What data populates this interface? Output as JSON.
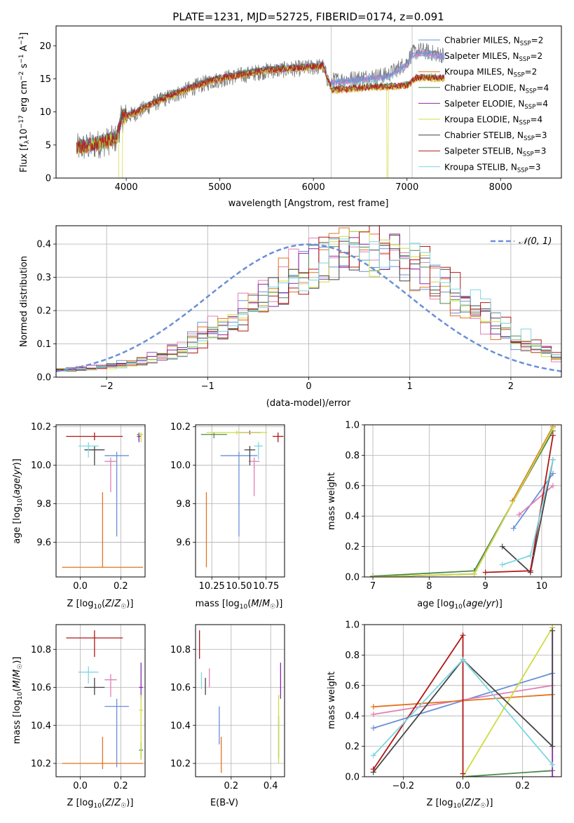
{
  "figure": {
    "title": "PLATE=1231, MJD=52725, FIBERID=0174, z=0.091"
  },
  "colors": {
    "chabrier_miles": "#6a8fd8",
    "salpeter_miles": "#e27fb5",
    "kroupa_miles": "#e2741f",
    "chabrier_elodie": "#4e8a4e",
    "salpeter_elodie": "#8a2aa8",
    "kroupa_elodie": "#cfdc3e",
    "chabrier_stelib": "#454545",
    "salpeter_stelib": "#b01818",
    "kroupa_stelib": "#7ed6e0"
  },
  "chart_data": [
    {
      "id": "spectrum",
      "type": "line",
      "xlabel": "wavelength [Angstrom, rest frame]",
      "ylabel": "Flux [f_λ10^-17 erg cm^-2 s^-1 A^-1]",
      "xlim": [
        3250,
        8650
      ],
      "ylim": [
        0,
        23
      ],
      "xticks": [
        4000,
        5000,
        6000,
        7000,
        8000
      ],
      "yticks": [
        0,
        5,
        10,
        15,
        20
      ],
      "masked_lines": [
        6190,
        7055
      ],
      "spectrum_range": [
        3470,
        7400
      ],
      "legend_position": "top-right",
      "legend": [
        {
          "label": "Chabrier MILES, N",
          "sub": "SSP",
          "suffix": "=2",
          "color": "#6a8fd8"
        },
        {
          "label": "Salpeter MILES, N",
          "sub": "SSP",
          "suffix": "=2",
          "color": "#e27fb5"
        },
        {
          "label": "Kroupa MILES, N",
          "sub": "SSP",
          "suffix": "=2",
          "color": "#e2741f"
        },
        {
          "label": "Chabrier ELODIE, N",
          "sub": "SSP",
          "suffix": "=4",
          "color": "#4e8a4e"
        },
        {
          "label": "Salpeter ELODIE, N",
          "sub": "SSP",
          "suffix": "=4",
          "color": "#8a2aa8"
        },
        {
          "label": "Kroupa ELODIE, N",
          "sub": "SSP",
          "suffix": "=4",
          "color": "#cfdc3e"
        },
        {
          "label": "Chabrier STELIB, N",
          "sub": "SSP",
          "suffix": "=3",
          "color": "#454545"
        },
        {
          "label": "Salpeter STELIB, N",
          "sub": "SSP",
          "suffix": "=3",
          "color": "#b01818"
        },
        {
          "label": "Kroupa STELIB, N",
          "sub": "SSP",
          "suffix": "=3",
          "color": "#7ed6e0"
        }
      ],
      "model_continuum": {
        "x": [
          3470,
          3600,
          3750,
          3900,
          3950,
          4100,
          4300,
          4500,
          4700,
          4900,
          5100,
          5300,
          5500,
          5700,
          5900,
          6100,
          6200,
          6400,
          6600,
          6800,
          6900,
          7000,
          7100,
          7200,
          7300,
          7400
        ],
        "y": [
          4.5,
          4.8,
          5.3,
          6.0,
          9.0,
          9.8,
          11.3,
          12.5,
          13.6,
          14.6,
          15.2,
          15.7,
          16.2,
          16.4,
          16.6,
          16.9,
          13.2,
          13.4,
          13.6,
          13.7,
          13.8,
          13.9,
          15.0,
          15.1,
          15.0,
          15.0
        ]
      },
      "data_continuum": {
        "x": [
          6190,
          6400,
          6600,
          6800,
          7000,
          7050,
          7150,
          7300,
          7400
        ],
        "y": [
          14.7,
          15.0,
          15.3,
          15.6,
          17.5,
          18.8,
          19.3,
          18.8,
          18.6
        ]
      }
    },
    {
      "id": "residuals",
      "type": "histogram",
      "xlabel": "(data-model)/error",
      "ylabel": "Normed distribution",
      "xlim": [
        -2.5,
        2.5
      ],
      "ylim": [
        0,
        0.455
      ],
      "xticks": [
        -2,
        -1,
        0,
        1,
        2
      ],
      "yticks": [
        0.0,
        0.1,
        0.2,
        0.3,
        0.4
      ],
      "bin_width": 0.1,
      "gaussian_label": "N(0,1)",
      "gaussian_color": "#6a8fd8",
      "legend_position": "top-right",
      "histogram_peak_center": 0.5,
      "histogram_peak_height": 0.37,
      "histogram_width": 0.95
    },
    {
      "id": "age-vs-metallicity",
      "type": "errorbar",
      "xlabel": "Z [log10(Z/Z☉)]",
      "ylabel": "age [log10(age/yr)]",
      "xlim": [
        -0.12,
        0.32
      ],
      "ylim": [
        9.42,
        10.21
      ],
      "xticks": [
        0.0,
        0.2
      ],
      "yticks": [
        9.6,
        9.8,
        10.0,
        10.2
      ],
      "points": [
        {
          "model": "chabrier_miles",
          "x": 0.18,
          "y": 10.05,
          "xerr": 0.06,
          "yerr": [
            0.42,
            0.02
          ]
        },
        {
          "model": "salpeter_miles",
          "x": 0.15,
          "y": 10.02,
          "xerr": 0.03,
          "yerr": [
            0.16,
            0.02
          ]
        },
        {
          "model": "kroupa_miles",
          "x": 0.11,
          "y": 9.47,
          "xerr": 0.2,
          "yerr": [
            0.0,
            0.39
          ]
        },
        {
          "model": "chabrier_elodie",
          "x": 0.29,
          "y": 10.16,
          "xerr": 0.01,
          "yerr": [
            0.03,
            0.01
          ]
        },
        {
          "model": "salpeter_elodie",
          "x": 0.29,
          "y": 10.15,
          "xerr": 0.01,
          "yerr": [
            0.03,
            0.01
          ]
        },
        {
          "model": "kroupa_elodie",
          "x": 0.3,
          "y": 10.16,
          "xerr": 0.01,
          "yerr": [
            0.04,
            0.01
          ]
        },
        {
          "model": "chabrier_stelib",
          "x": 0.07,
          "y": 10.08,
          "xerr": 0.05,
          "yerr": [
            0.08,
            0.02
          ]
        },
        {
          "model": "salpeter_stelib",
          "x": 0.07,
          "y": 10.15,
          "xerr": 0.14,
          "yerr": [
            0.02,
            0.02
          ]
        },
        {
          "model": "kroupa_stelib",
          "x": 0.04,
          "y": 10.1,
          "xerr": 0.05,
          "yerr": [
            0.06,
            0.02
          ]
        }
      ]
    },
    {
      "id": "age-vs-mass",
      "type": "errorbar",
      "xlabel": "mass [log10(M/M☉)]",
      "ylabel": "",
      "xlim": [
        10.1,
        10.92
      ],
      "ylim": [
        9.42,
        10.21
      ],
      "xticks": [
        10.25,
        10.5,
        10.75
      ],
      "yticks": [
        9.6,
        9.8,
        10.0,
        10.2
      ],
      "points": [
        {
          "model": "chabrier_miles",
          "x": 10.5,
          "y": 10.05,
          "xerr": 0.17,
          "yerr": [
            0.42,
            0.02
          ]
        },
        {
          "model": "salpeter_miles",
          "x": 10.64,
          "y": 10.02,
          "xerr": 0.05,
          "yerr": [
            0.18,
            0.02
          ]
        },
        {
          "model": "kroupa_miles",
          "x": 10.2,
          "y": 9.47,
          "xerr": 0.0,
          "yerr": [
            0.0,
            0.39
          ]
        },
        {
          "model": "chabrier_elodie",
          "x": 10.27,
          "y": 10.16,
          "xerr": 0.12,
          "yerr": [
            0.02,
            0.01
          ]
        },
        {
          "model": "salpeter_elodie",
          "x": 10.6,
          "y": 10.17,
          "xerr": 0.1,
          "yerr": [
            0.01,
            0.01
          ]
        },
        {
          "model": "kroupa_elodie",
          "x": 10.48,
          "y": 10.17,
          "xerr": 0.28,
          "yerr": [
            0.01,
            0.01
          ]
        },
        {
          "model": "chabrier_stelib",
          "x": 10.6,
          "y": 10.08,
          "xerr": 0.05,
          "yerr": [
            0.08,
            0.02
          ]
        },
        {
          "model": "salpeter_stelib",
          "x": 10.86,
          "y": 10.15,
          "xerr": 0.05,
          "yerr": [
            0.03,
            0.02
          ]
        },
        {
          "model": "kroupa_stelib",
          "x": 10.68,
          "y": 10.1,
          "xerr": 0.04,
          "yerr": [
            0.07,
            0.02
          ]
        }
      ]
    },
    {
      "id": "mass-weight-vs-age",
      "type": "line",
      "xlabel": "age [log10(age/yr)]",
      "ylabel": "mass weight",
      "xlim": [
        6.85,
        10.35
      ],
      "ylim": [
        0.0,
        1.0
      ],
      "xticks": [
        7,
        8,
        9,
        10
      ],
      "yticks": [
        0.0,
        0.2,
        0.4,
        0.6,
        0.8,
        1.0
      ],
      "series": [
        {
          "model": "chabrier_miles",
          "x": [
            9.5,
            10.2
          ],
          "y": [
            0.32,
            0.68
          ]
        },
        {
          "model": "salpeter_miles",
          "x": [
            9.6,
            10.2
          ],
          "y": [
            0.41,
            0.6
          ]
        },
        {
          "model": "kroupa_miles",
          "x": [
            9.48,
            10.2
          ],
          "y": [
            0.5,
            0.99
          ]
        },
        {
          "model": "chabrier_elodie",
          "x": [
            7.0,
            8.8,
            10.2
          ],
          "y": [
            0.005,
            0.04,
            0.96
          ]
        },
        {
          "model": "salpeter_elodie",
          "x": [
            7.0,
            8.8,
            10.2
          ],
          "y": [
            0.0,
            0.02,
            0.98
          ]
        },
        {
          "model": "kroupa_elodie",
          "x": [
            7.0,
            8.8,
            10.2
          ],
          "y": [
            0.0,
            0.02,
            0.98
          ]
        },
        {
          "model": "chabrier_stelib",
          "x": [
            9.3,
            9.8,
            10.2
          ],
          "y": [
            0.2,
            0.03,
            0.77
          ]
        },
        {
          "model": "salpeter_stelib",
          "x": [
            9.0,
            9.8,
            10.2
          ],
          "y": [
            0.03,
            0.04,
            0.93
          ]
        },
        {
          "model": "kroupa_stelib",
          "x": [
            9.3,
            9.8,
            10.2
          ],
          "y": [
            0.08,
            0.14,
            0.77
          ]
        }
      ]
    },
    {
      "id": "mass-vs-metallicity",
      "type": "errorbar",
      "xlabel": "Z [log10(Z/Z☉)]",
      "ylabel": "mass [log10(M/M☉)]",
      "xlim": [
        -0.12,
        0.32
      ],
      "ylim": [
        10.13,
        10.93
      ],
      "xticks": [
        0.0,
        0.2
      ],
      "yticks": [
        10.2,
        10.4,
        10.6,
        10.8
      ],
      "points": [
        {
          "model": "chabrier_miles",
          "x": 0.18,
          "y": 10.5,
          "xerr": 0.06,
          "yerr": [
            0.32,
            0.04
          ]
        },
        {
          "model": "salpeter_miles",
          "x": 0.15,
          "y": 10.64,
          "xerr": 0.03,
          "yerr": [
            0.09,
            0.03
          ]
        },
        {
          "model": "kroupa_miles",
          "x": 0.11,
          "y": 10.2,
          "xerr": 0.2,
          "yerr": [
            0.03,
            0.14
          ]
        },
        {
          "model": "chabrier_elodie",
          "x": 0.3,
          "y": 10.27,
          "xerr": 0.01,
          "yerr": [
            0.05,
            0.04
          ]
        },
        {
          "model": "salpeter_elodie",
          "x": 0.3,
          "y": 10.6,
          "xerr": 0.01,
          "yerr": [
            0.06,
            0.13
          ]
        },
        {
          "model": "kroupa_elodie",
          "x": 0.3,
          "y": 10.48,
          "xerr": 0.01,
          "yerr": [
            0.26,
            0.08
          ]
        },
        {
          "model": "chabrier_stelib",
          "x": 0.07,
          "y": 10.6,
          "xerr": 0.05,
          "yerr": [
            0.04,
            0.05
          ]
        },
        {
          "model": "salpeter_stelib",
          "x": 0.07,
          "y": 10.86,
          "xerr": 0.14,
          "yerr": [
            0.1,
            0.04
          ]
        },
        {
          "model": "kroupa_stelib",
          "x": 0.04,
          "y": 10.68,
          "xerr": 0.05,
          "yerr": [
            0.06,
            0.03
          ]
        }
      ]
    },
    {
      "id": "mass-vs-ebv",
      "type": "errorbar",
      "xlabel": "E(B-V)",
      "ylabel": "",
      "xlim": [
        0.02,
        0.47
      ],
      "ylim": [
        10.13,
        10.93
      ],
      "xticks": [
        0.2,
        0.4
      ],
      "yticks": [
        10.2,
        10.4,
        10.6,
        10.8
      ],
      "points": [
        {
          "model": "chabrier_miles",
          "x": 0.14,
          "y": 10.4,
          "xerr": 0.0,
          "yerr": [
            0.1,
            0.1
          ]
        },
        {
          "model": "salpeter_miles",
          "x": 0.09,
          "y": 10.6,
          "xerr": 0.0,
          "yerr": [
            0.0,
            0.1
          ]
        },
        {
          "model": "kroupa_miles",
          "x": 0.15,
          "y": 10.2,
          "xerr": 0.0,
          "yerr": [
            0.05,
            0.14
          ]
        },
        {
          "model": "chabrier_elodie",
          "x": 0.44,
          "y": 10.35,
          "xerr": 0.0,
          "yerr": [
            0.12,
            0.1
          ]
        },
        {
          "model": "salpeter_elodie",
          "x": 0.45,
          "y": 10.6,
          "xerr": 0.0,
          "yerr": [
            0.06,
            0.13
          ]
        },
        {
          "model": "kroupa_elodie",
          "x": 0.44,
          "y": 10.4,
          "xerr": 0.0,
          "yerr": [
            0.2,
            0.16
          ]
        },
        {
          "model": "chabrier_stelib",
          "x": 0.07,
          "y": 10.6,
          "xerr": 0.0,
          "yerr": [
            0.04,
            0.05
          ]
        },
        {
          "model": "salpeter_stelib",
          "x": 0.04,
          "y": 10.83,
          "xerr": 0.0,
          "yerr": [
            0.08,
            0.07
          ]
        },
        {
          "model": "kroupa_stelib",
          "x": 0.05,
          "y": 10.63,
          "xerr": 0.0,
          "yerr": [
            0.04,
            0.05
          ]
        }
      ]
    },
    {
      "id": "mass-weight-vs-metallicity",
      "type": "line",
      "xlabel": "Z [log10(Z/Z☉)]",
      "ylabel": "mass weight",
      "xlim": [
        -0.33,
        0.33
      ],
      "ylim": [
        0.0,
        1.0
      ],
      "xticks": [
        -0.2,
        0.0,
        0.2
      ],
      "yticks": [
        0.0,
        0.2,
        0.4,
        0.6,
        0.8,
        1.0
      ],
      "series": [
        {
          "model": "chabrier_miles",
          "x": [
            -0.3,
            0.3
          ],
          "y": [
            0.32,
            0.68
          ]
        },
        {
          "model": "salpeter_miles",
          "x": [
            -0.3,
            0.3
          ],
          "y": [
            0.41,
            0.6
          ]
        },
        {
          "model": "kroupa_miles",
          "x": [
            -0.3,
            0.3
          ],
          "y": [
            0.46,
            0.54
          ]
        },
        {
          "model": "chabrier_elodie",
          "x": [
            0.0,
            0.3
          ],
          "y": [
            0.0,
            0.04
          ]
        },
        {
          "model": "salpeter_elodie",
          "x": [
            0.3,
            0.3
          ],
          "y": [
            0.0,
            0.98
          ]
        },
        {
          "model": "kroupa_elodie",
          "x": [
            0.0,
            0.3
          ],
          "y": [
            0.0,
            0.98
          ]
        },
        {
          "model": "chabrier_stelib",
          "x": [
            -0.3,
            0.0,
            0.3,
            0.3
          ],
          "y": [
            0.03,
            0.77,
            0.2,
            0.96
          ]
        },
        {
          "model": "salpeter_stelib",
          "x": [
            -0.3,
            0.0,
            0.0
          ],
          "y": [
            0.05,
            0.93,
            0.02
          ]
        },
        {
          "model": "kroupa_stelib",
          "x": [
            -0.3,
            0.0,
            0.3
          ],
          "y": [
            0.14,
            0.77,
            0.08
          ]
        }
      ]
    }
  ]
}
